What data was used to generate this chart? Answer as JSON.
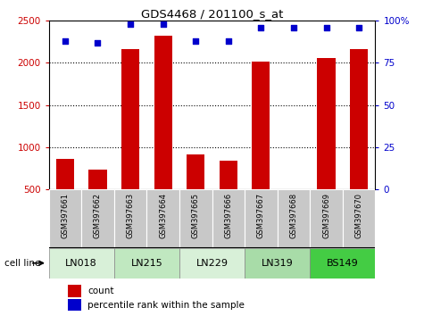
{
  "title": "GDS4468 / 201100_s_at",
  "samples": [
    "GSM397661",
    "GSM397662",
    "GSM397663",
    "GSM397664",
    "GSM397665",
    "GSM397666",
    "GSM397667",
    "GSM397668",
    "GSM397669",
    "GSM397670"
  ],
  "counts": [
    860,
    740,
    2160,
    2320,
    920,
    840,
    2010,
    500,
    2060,
    2160
  ],
  "percentile": [
    88,
    87,
    98,
    98,
    88,
    88,
    96,
    96,
    96,
    96
  ],
  "cell_lines": [
    {
      "name": "LN018",
      "samples": [
        0,
        1
      ],
      "color": "#d8f0d8"
    },
    {
      "name": "LN215",
      "samples": [
        2,
        3
      ],
      "color": "#c0e8c0"
    },
    {
      "name": "LN229",
      "samples": [
        4,
        5
      ],
      "color": "#d8f0d8"
    },
    {
      "name": "LN319",
      "samples": [
        6,
        7
      ],
      "color": "#a8dca8"
    },
    {
      "name": "BS149",
      "samples": [
        8,
        9
      ],
      "color": "#44cc44"
    }
  ],
  "ylim_left": [
    500,
    2500
  ],
  "ylim_right": [
    0,
    100
  ],
  "bar_color": "#cc0000",
  "dot_color": "#0000cc",
  "tick_color_left": "#cc0000",
  "tick_color_right": "#0000cc",
  "sample_area_color": "#c8c8c8",
  "left_axis_ticks": [
    500,
    1000,
    1500,
    2000,
    2500
  ],
  "right_axis_ticks": [
    0,
    25,
    50,
    75,
    100
  ],
  "right_axis_labels": [
    "0",
    "25",
    "50",
    "75",
    "100%"
  ],
  "grid_lines": [
    1000,
    1500,
    2000
  ]
}
